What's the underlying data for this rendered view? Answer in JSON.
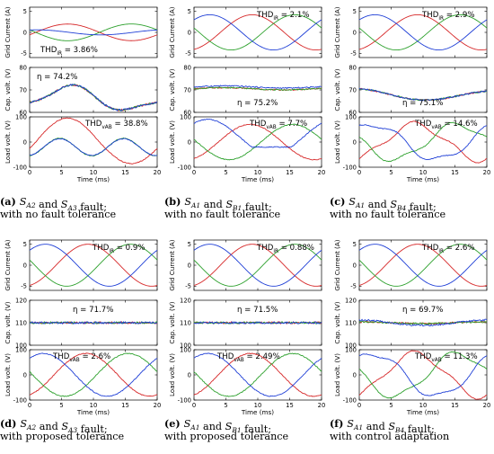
{
  "colors": {
    "phase_r": "#d62728",
    "phase_g": "#2ca02c",
    "phase_b": "#1f3fd6",
    "tol_band": "#e8c8c8"
  },
  "axes_text": {
    "grid_ylabel": "Grid Current (A)",
    "cap_ylabel": "Cap. volt. (V)",
    "load_ylabel": "Load volt. (V)",
    "xlabel": "Time (ms)"
  },
  "chart_data": [
    {
      "type": "line",
      "panel_label": "(a)",
      "caption": [
        "S_A2 and S_A3 fault;",
        "with no fault tolerance"
      ],
      "x_ticks": [
        0,
        5,
        10,
        15,
        20
      ],
      "xlim": [
        0,
        20
      ],
      "grid_current": {
        "ylim": [
          -6,
          6
        ],
        "y_ticks": [
          -5,
          0,
          5
        ],
        "annotation": "THD_iR = 3.86%",
        "amplitude": 2.2,
        "thd_label": "3.86%",
        "thd_prefix": "THD",
        "thd_sub": "iR"
      },
      "cap_voltage": {
        "ylim": [
          60,
          80
        ],
        "y_ticks": [
          60,
          70,
          80
        ],
        "annotation": "η = 74.2%",
        "eta": "74.2%"
      },
      "load_voltage": {
        "ylim": [
          -100,
          100
        ],
        "y_ticks": [
          -100,
          0,
          100
        ],
        "annotation": "THD_vAB = 38.8%",
        "thd_label": "38.8%",
        "thd_sub": "vAB"
      }
    },
    {
      "type": "line",
      "panel_label": "(b)",
      "caption": [
        "S_A1 and S_B1 fault;",
        "with no fault tolerance"
      ],
      "x_ticks": [
        0,
        5,
        10,
        15,
        20
      ],
      "xlim": [
        0,
        20
      ],
      "grid_current": {
        "ylim": [
          -6,
          6
        ],
        "y_ticks": [
          -5,
          0,
          5
        ],
        "annotation": "THD_iR = 2.1%",
        "amplitude": 4.2,
        "thd_label": "2.1%",
        "thd_sub": "iR"
      },
      "cap_voltage": {
        "ylim": [
          60,
          80
        ],
        "y_ticks": [
          60,
          70,
          80
        ],
        "annotation": "η = 75.2%",
        "eta": "75.2%"
      },
      "load_voltage": {
        "ylim": [
          -100,
          100
        ],
        "y_ticks": [
          -100,
          0,
          100
        ],
        "annotation": "THD_vAB = 7.7%",
        "thd_label": "7.7%",
        "thd_sub": "vAB"
      }
    },
    {
      "type": "line",
      "panel_label": "(c)",
      "caption": [
        "S_A1 and S_B4 fault;",
        "with no fault tolerance"
      ],
      "x_ticks": [
        0,
        5,
        10,
        15,
        20
      ],
      "xlim": [
        0,
        20
      ],
      "grid_current": {
        "ylim": [
          -6,
          6
        ],
        "y_ticks": [
          -5,
          0,
          5
        ],
        "annotation": "THD_iR = 2.9%",
        "amplitude": 4.2,
        "thd_label": "2.9%",
        "thd_sub": "iR"
      },
      "cap_voltage": {
        "ylim": [
          60,
          80
        ],
        "y_ticks": [
          60,
          70,
          80
        ],
        "annotation": "η = 75.1%",
        "eta": "75.1%"
      },
      "load_voltage": {
        "ylim": [
          -100,
          100
        ],
        "y_ticks": [
          -100,
          0,
          100
        ],
        "annotation": "THD_vAB = 14.6%",
        "thd_label": "14.6%",
        "thd_sub": "vAB"
      }
    },
    {
      "type": "line",
      "panel_label": "(d)",
      "caption": [
        "S_A2 and S_A3 fault;",
        "with proposed tolerance"
      ],
      "x_ticks": [
        0,
        5,
        10,
        15,
        20
      ],
      "xlim": [
        0,
        20
      ],
      "grid_current": {
        "ylim": [
          -6,
          6
        ],
        "y_ticks": [
          -5,
          0,
          5
        ],
        "annotation": "THD_iR = 0.9%",
        "amplitude": 5,
        "thd_label": "0.9%",
        "thd_sub": "iR"
      },
      "cap_voltage": {
        "ylim": [
          100,
          120
        ],
        "y_ticks": [
          100,
          110,
          120
        ],
        "annotation": "η = 71.7%",
        "eta": "71.7%"
      },
      "load_voltage": {
        "ylim": [
          -100,
          100
        ],
        "y_ticks": [
          -100,
          0,
          100
        ],
        "annotation": "THD_vAB = 2.6%",
        "thd_label": "2.6%",
        "thd_sub": "vAB"
      }
    },
    {
      "type": "line",
      "panel_label": "(e)",
      "caption": [
        "S_A1 and S_B1 fault;",
        "with proposed tolerance"
      ],
      "x_ticks": [
        0,
        5,
        10,
        15,
        20
      ],
      "xlim": [
        0,
        20
      ],
      "grid_current": {
        "ylim": [
          -6,
          6
        ],
        "y_ticks": [
          -5,
          0,
          5
        ],
        "annotation": "THD_iR = 0.88%",
        "amplitude": 5,
        "thd_label": "0.88%",
        "thd_sub": "iR"
      },
      "cap_voltage": {
        "ylim": [
          100,
          120
        ],
        "y_ticks": [
          100,
          110,
          120
        ],
        "annotation": "η = 71.5%",
        "eta": "71.5%"
      },
      "load_voltage": {
        "ylim": [
          -100,
          100
        ],
        "y_ticks": [
          -100,
          0,
          100
        ],
        "annotation": "THD_vAB = 2.49%",
        "thd_label": "2.49%",
        "thd_sub": "vAB"
      }
    },
    {
      "type": "line",
      "panel_label": "(f)",
      "caption": [
        "S_A1 and S_B4 fault;",
        "with control adaptation"
      ],
      "x_ticks": [
        0,
        5,
        10,
        15,
        20
      ],
      "xlim": [
        0,
        20
      ],
      "grid_current": {
        "ylim": [
          -6,
          6
        ],
        "y_ticks": [
          -5,
          0,
          5
        ],
        "annotation": "THD_iR = 2.6%",
        "amplitude": 5,
        "thd_label": "2.6%",
        "thd_sub": "iR"
      },
      "cap_voltage": {
        "ylim": [
          100,
          120
        ],
        "y_ticks": [
          100,
          110,
          120
        ],
        "annotation": "η = 69.7%",
        "eta": "69.7%"
      },
      "load_voltage": {
        "ylim": [
          -100,
          100
        ],
        "y_ticks": [
          -100,
          0,
          100
        ],
        "annotation": "THD_vAB = 11.3%",
        "thd_label": "11.3%",
        "thd_sub": "vAB"
      }
    }
  ]
}
